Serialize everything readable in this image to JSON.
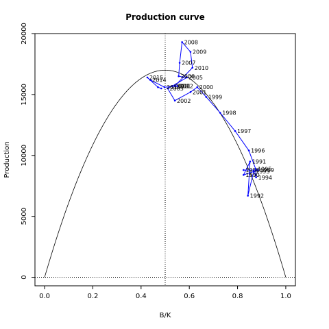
{
  "chart_data": {
    "type": "line",
    "title": "Production curve",
    "xlabel": "B/K",
    "ylabel": "Production",
    "xlim": [
      -0.04,
      1.04
    ],
    "ylim": [
      -700,
      20000
    ],
    "x_ticks": [
      0.0,
      0.2,
      0.4,
      0.6,
      0.8,
      1.0
    ],
    "x_tick_labels": [
      "0.0",
      "0.2",
      "0.4",
      "0.6",
      "0.8",
      "1.0"
    ],
    "y_ticks": [
      0,
      5000,
      10000,
      15000,
      20000
    ],
    "y_tick_labels": [
      "0",
      "5000",
      "10000",
      "15000",
      "20000"
    ],
    "reference_lines": {
      "vertical_x": 0.5,
      "horizontal_y": 0
    },
    "curve": {
      "type": "parabola",
      "peak_x": 0.5,
      "peak_y": 17000,
      "color": "#000000"
    },
    "series": [
      {
        "color": "#0000ff",
        "points": [
          {
            "x": 0.825,
            "y": 8800,
            "label": "1988"
          },
          {
            "x": 0.885,
            "y": 8800,
            "label": "1989"
          },
          {
            "x": 0.825,
            "y": 8400,
            "label": "1990"
          },
          {
            "x": 0.852,
            "y": 9500,
            "label": "1991"
          },
          {
            "x": 0.843,
            "y": 6700,
            "label": "1992"
          },
          {
            "x": 0.867,
            "y": 8700,
            "label": "1993"
          },
          {
            "x": 0.877,
            "y": 8200,
            "label": "1994"
          },
          {
            "x": 0.875,
            "y": 8900,
            "label": "1995"
          },
          {
            "x": 0.847,
            "y": 10400,
            "label": "1996"
          },
          {
            "x": 0.79,
            "y": 12000,
            "label": "1997"
          },
          {
            "x": 0.728,
            "y": 13500,
            "label": "1998"
          },
          {
            "x": 0.67,
            "y": 14800,
            "label": "1999"
          },
          {
            "x": 0.633,
            "y": 15600,
            "label": "2000"
          },
          {
            "x": 0.605,
            "y": 15200,
            "label": "2001"
          },
          {
            "x": 0.54,
            "y": 14500,
            "label": "2002"
          },
          {
            "x": 0.51,
            "y": 15500,
            "label": "2003"
          },
          {
            "x": 0.53,
            "y": 15700,
            "label": "2004"
          },
          {
            "x": 0.59,
            "y": 16400,
            "label": "2005"
          },
          {
            "x": 0.556,
            "y": 16500,
            "label": "2006"
          },
          {
            "x": 0.56,
            "y": 17600,
            "label": "2007"
          },
          {
            "x": 0.57,
            "y": 19300,
            "label": "2008"
          },
          {
            "x": 0.605,
            "y": 18500,
            "label": "2009"
          },
          {
            "x": 0.613,
            "y": 17200,
            "label": "2010"
          },
          {
            "x": 0.54,
            "y": 15700,
            "label": "2011"
          },
          {
            "x": 0.55,
            "y": 15700,
            "label": "2012"
          },
          {
            "x": 0.497,
            "y": 15600,
            "label": "2013"
          },
          {
            "x": 0.438,
            "y": 16200,
            "label": "2014"
          },
          {
            "x": 0.426,
            "y": 16400,
            "label": "2015"
          },
          {
            "x": 0.47,
            "y": 15600,
            "label": ""
          },
          {
            "x": 0.484,
            "y": 15500,
            "label": ""
          }
        ]
      }
    ]
  }
}
